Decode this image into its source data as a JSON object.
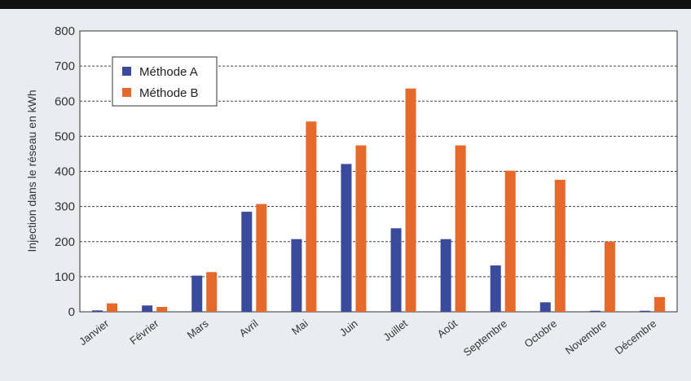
{
  "chart_data": {
    "type": "bar",
    "title": "",
    "xlabel": "",
    "ylabel": "Injection dans le réseau en kWh",
    "ylim": [
      0,
      800
    ],
    "yticks": [
      0,
      100,
      200,
      300,
      400,
      500,
      600,
      700,
      800
    ],
    "grid": "horizontal-dashed",
    "legend_position": "top-left",
    "categories": [
      "Janvier",
      "Février",
      "Mars",
      "Avril",
      "Mai",
      "Juin",
      "Juillet",
      "Août",
      "Septembre",
      "Octobre",
      "Novembre",
      "Décembre"
    ],
    "series": [
      {
        "name": "Méthode A",
        "color": "#3a4a9c",
        "values": [
          4,
          18,
          103,
          285,
          207,
          421,
          238,
          207,
          132,
          27,
          3,
          3
        ]
      },
      {
        "name": "Méthode B",
        "color": "#e4692a",
        "values": [
          24,
          14,
          113,
          307,
          542,
          474,
          636,
          474,
          402,
          376,
          200,
          42
        ]
      }
    ]
  }
}
